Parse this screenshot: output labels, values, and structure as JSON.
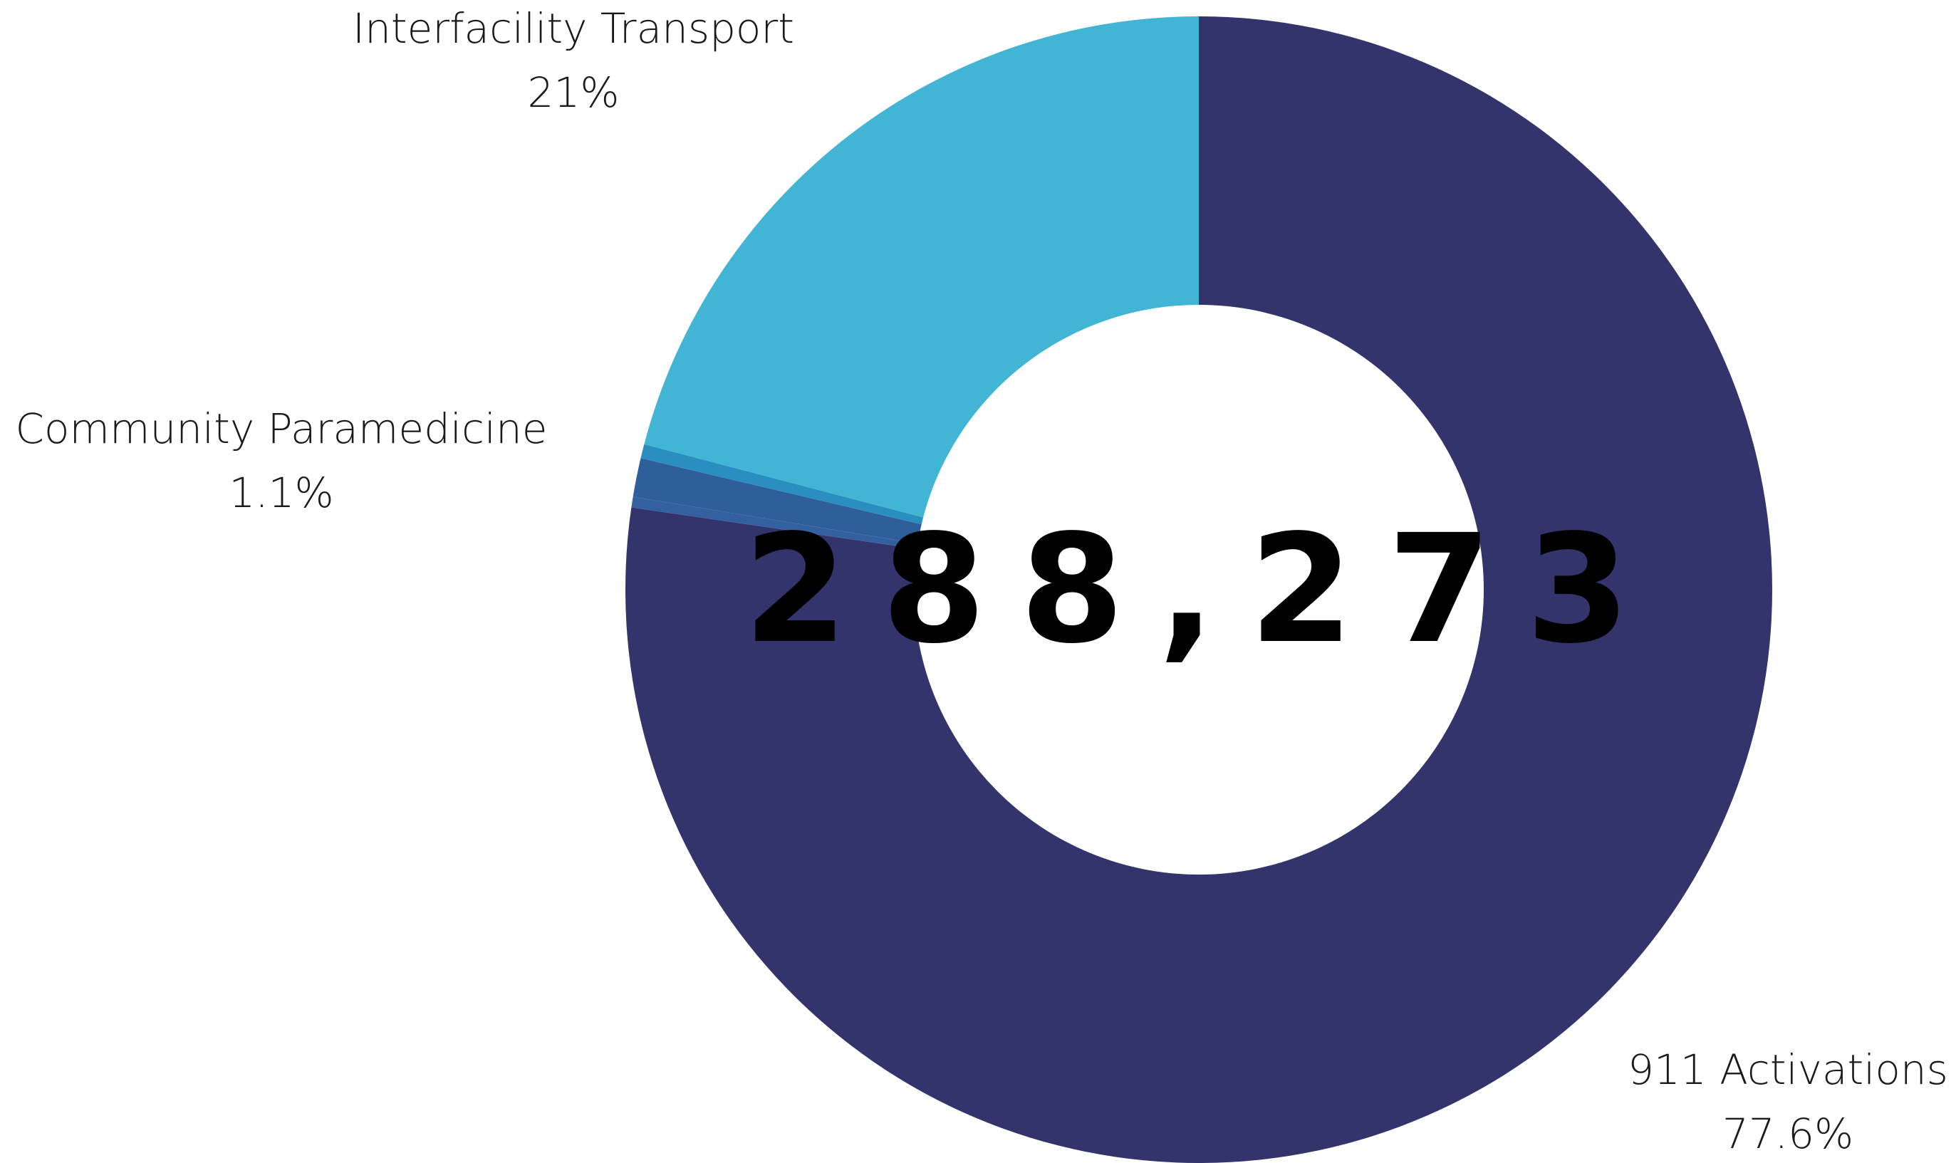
{
  "chart_data": {
    "type": "pie",
    "donut": true,
    "center_total": "288,273",
    "slices": [
      {
        "label": "911 Activations",
        "value": 77.6,
        "value_label": "77.6%",
        "color": "#33346b"
      },
      {
        "label": "",
        "value": 0.3,
        "value_label": "",
        "color": "#3460a0"
      },
      {
        "label": "Community Paramedicine",
        "value": 1.1,
        "value_label": "1.1%",
        "color": "#2e5f9a"
      },
      {
        "label": "",
        "value": 0.4,
        "value_label": "",
        "color": "#2a8fc0"
      },
      {
        "label": "Interfacility Transport",
        "value": 21,
        "value_label": "21%",
        "color": "#42b5d5"
      }
    ],
    "start_angle_deg": 0,
    "direction": "clockwise",
    "labels_outside": true
  }
}
